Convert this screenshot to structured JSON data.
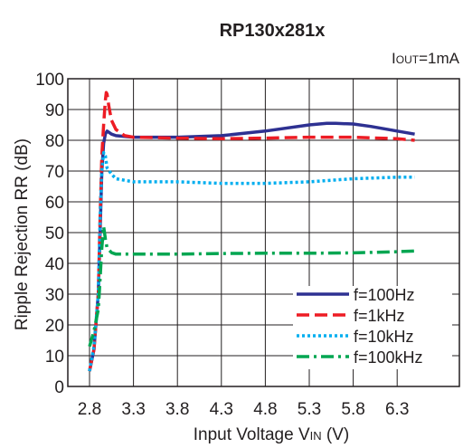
{
  "chart_data": {
    "type": "line",
    "title": "RP130x281x",
    "condition": {
      "main": "I",
      "sub": "OUT",
      "rest": "=1mA"
    },
    "xlabel": {
      "pre": "Input Voltage V",
      "sub": "IN",
      "post": " (V)"
    },
    "ylabel": "Ripple Rejection RR (dB)",
    "xlim": [
      2.8,
      6.5
    ],
    "ylim": [
      0,
      100
    ],
    "xticks": [
      "2.8",
      "3.3",
      "3.8",
      "4.3",
      "4.8",
      "5.3",
      "5.8",
      "6.3"
    ],
    "yticks": [
      "0",
      "10",
      "20",
      "30",
      "40",
      "50",
      "60",
      "70",
      "80",
      "90",
      "100"
    ],
    "grid": true,
    "legend_position": "bottom-right",
    "series": [
      {
        "name": "f=100Hz",
        "color": "#2e3192",
        "dash": "solid",
        "x": [
          2.8,
          2.85,
          2.9,
          2.92,
          2.94,
          2.96,
          2.98,
          3.0,
          3.05,
          3.1,
          3.3,
          3.8,
          4.3,
          4.8,
          5.3,
          5.5,
          5.6,
          5.8,
          6.0,
          6.3,
          6.5
        ],
        "y": [
          5,
          12,
          30,
          50,
          70,
          79,
          82,
          83,
          82,
          81.5,
          81,
          81,
          81.5,
          83,
          85,
          85.5,
          85.5,
          85.3,
          84.5,
          83,
          82
        ]
      },
      {
        "name": "f=1kHz",
        "color": "#ed1c24",
        "dash": "longdash",
        "x": [
          2.8,
          2.85,
          2.9,
          2.92,
          2.94,
          2.96,
          2.98,
          2.99,
          3.0,
          3.02,
          3.05,
          3.1,
          3.2,
          3.3,
          3.8,
          4.3,
          4.8,
          5.3,
          5.8,
          6.3,
          6.5
        ],
        "y": [
          5,
          12,
          30,
          55,
          75,
          85,
          93,
          95.5,
          95,
          91,
          86.5,
          83.5,
          81.5,
          81,
          80.7,
          80.5,
          80.7,
          81,
          81,
          80.5,
          80
        ]
      },
      {
        "name": "f=10kHz",
        "color": "#00aeef",
        "dash": "dotted",
        "x": [
          2.8,
          2.85,
          2.9,
          2.92,
          2.94,
          2.96,
          2.98,
          3.0,
          3.05,
          3.1,
          3.3,
          3.8,
          4.3,
          4.8,
          5.3,
          5.8,
          6.3,
          6.5
        ],
        "y": [
          5,
          13,
          30,
          55,
          70,
          76,
          75,
          71,
          69,
          67.5,
          66.5,
          66.5,
          66,
          66,
          66.5,
          67.5,
          68,
          68
        ]
      },
      {
        "name": "f=100kHz",
        "color": "#00a651",
        "dash": "dashdot",
        "x": [
          2.8,
          2.85,
          2.9,
          2.92,
          2.94,
          2.96,
          2.98,
          3.0,
          3.05,
          3.1,
          3.3,
          3.8,
          4.3,
          4.8,
          5.3,
          5.8,
          6.3,
          6.5
        ],
        "y": [
          13,
          18,
          25,
          35,
          45,
          52,
          48,
          45,
          43.5,
          43,
          43,
          43,
          43.2,
          43.3,
          43.3,
          43.4,
          43.8,
          44
        ]
      }
    ]
  }
}
